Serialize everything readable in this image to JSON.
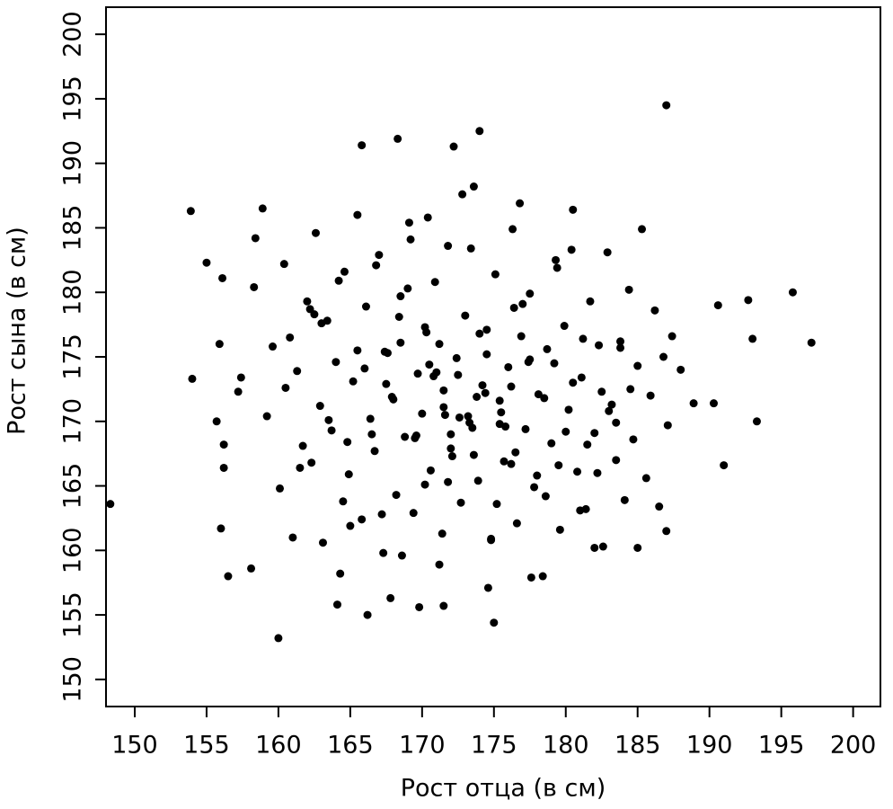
{
  "chart_data": {
    "type": "scatter",
    "x_label": "Рост отца (в см)",
    "y_label": "Рост сына (в см)",
    "xlim": [
      148,
      201.9
    ],
    "ylim": [
      147.9,
      202.1
    ],
    "xticks": [
      150,
      155,
      160,
      165,
      170,
      175,
      180,
      185,
      190,
      195,
      200
    ],
    "yticks": [
      150,
      155,
      160,
      165,
      170,
      175,
      180,
      185,
      190,
      195,
      200
    ],
    "color": "#000000",
    "series": [
      {
        "x": [
          148.3,
          153.9,
          154,
          155,
          155.7,
          155.9,
          156,
          156.1,
          156.2,
          156.2,
          156.5,
          157.2,
          157.4,
          158.1,
          158.3,
          158.4,
          158.9,
          160,
          165.8,
          168.3,
          172.2,
          174,
          187,
          192.7,
          193,
          193.3,
          195.8,
          197.1,
          191,
          190.3,
          190.6,
          175,
          164.1,
          166.2,
          169.8,
          171.5,
          187,
          185,
          182,
          159.2,
          159.6,
          160.1,
          160.4,
          160.8,
          161.0,
          161.3,
          161.7,
          162.0,
          162.3,
          162.6,
          162.9,
          163.1,
          163.4,
          163.7,
          164.0,
          164.3,
          164.6,
          164.9,
          165.2,
          165.5,
          165.8,
          166.1,
          166.4,
          166.7,
          167.0,
          167.3,
          167.6,
          167.9,
          168.2,
          168.5,
          168.8,
          169.1,
          169.4,
          169.7,
          170.0,
          170.3,
          170.6,
          170.9,
          171.2,
          171.5,
          171.8,
          172.1,
          172.4,
          172.7,
          173.0,
          173.3,
          173.6,
          173.9,
          174.2,
          174.5,
          174.8,
          175.1,
          175.4,
          175.7,
          176.0,
          176.3,
          176.6,
          176.9,
          177.2,
          177.5,
          177.8,
          178.1,
          178.4,
          178.7,
          179.0,
          179.3,
          179.6,
          179.9,
          180.2,
          180.5,
          180.8,
          181.1,
          181.4,
          181.7,
          182.0,
          182.3,
          182.6,
          182.9,
          183.2,
          183.5,
          183.8,
          184.1,
          184.4,
          184.7,
          185.0,
          185.3,
          185.6,
          185.9,
          186.2,
          186.5,
          186.8,
          187.1,
          187.4,
          188.0,
          188.9,
          160.5,
          161.5,
          162.5,
          163.5,
          164.5,
          165.5,
          166.5,
          167.5,
          168.5,
          169.5,
          170.5,
          171.5,
          172.5,
          173.5,
          174.5,
          175.5,
          176.5,
          177.5,
          178.5,
          179.5,
          180.5,
          181.5,
          182.5,
          183.5,
          184.5,
          163.0,
          164.8,
          166.0,
          167.2,
          168.0,
          169.0,
          170.2,
          171.0,
          172.0,
          173.2,
          174.0,
          175.2,
          176.2,
          177.0,
          178.0,
          179.2,
          180.0,
          181.2,
          182.2,
          183.0,
          165.0,
          166.8,
          168.6,
          170.4,
          171.8,
          173.4,
          174.8,
          176.4,
          177.6,
          179.4,
          181.0,
          162.2,
          164.2,
          167.8,
          169.2,
          171.4,
          172.8,
          174.6,
          176.8,
          178.6,
          180.4,
          183.8,
          167.4,
          169.6,
          171.6,
          173.8,
          175.8,
          177.4,
          170.8,
          172.6,
          174.4,
          171.2,
          173.6,
          170.2,
          175.4,
          168.4,
          176.2,
          172.0
        ],
        "values": [
          163.6,
          186.3,
          173.3,
          182.3,
          170,
          176,
          161.7,
          181.1,
          168.2,
          166.4,
          158,
          172.3,
          173.4,
          158.6,
          180.4,
          184.2,
          186.5,
          153.2,
          191.4,
          191.9,
          191.3,
          192.5,
          194.5,
          179.4,
          176.4,
          170,
          180,
          176.1,
          166.6,
          171.4,
          179,
          154.4,
          155.8,
          155,
          155.6,
          155.7,
          161.5,
          160.2,
          160.2,
          170.4,
          175.8,
          164.8,
          182.2,
          176.5,
          161.0,
          173.9,
          168.1,
          179.3,
          166.8,
          184.6,
          171.2,
          160.6,
          177.8,
          169.3,
          174.6,
          158.2,
          181.6,
          165.9,
          173.1,
          186.0,
          162.4,
          178.9,
          170.2,
          167.7,
          182.9,
          159.8,
          175.3,
          171.9,
          164.3,
          179.7,
          168.8,
          185.4,
          162.9,
          173.7,
          170.6,
          176.9,
          166.2,
          180.8,
          158.9,
          172.4,
          183.6,
          167.3,
          174.9,
          163.7,
          178.2,
          169.9,
          188.2,
          165.4,
          172.8,
          177.1,
          160.9,
          181.4,
          171.6,
          166.9,
          174.2,
          184.9,
          162.1,
          176.6,
          169.4,
          179.9,
          164.9,
          172.1,
          158.0,
          175.6,
          168.3,
          182.5,
          161.6,
          177.4,
          170.9,
          186.4,
          166.1,
          173.4,
          163.2,
          179.3,
          169.1,
          175.9,
          160.3,
          183.1,
          171.3,
          167.0,
          176.2,
          163.9,
          180.2,
          168.6,
          174.3,
          184.9,
          165.6,
          172.0,
          178.6,
          163.4,
          175.0,
          169.7,
          176.6,
          174.0,
          171.4,
          172.6,
          166.4,
          178.3,
          170.1,
          163.8,
          175.5,
          169.0,
          172.9,
          176.1,
          168.7,
          174.4,
          171.1,
          173.6,
          169.5,
          175.2,
          170.7,
          167.6,
          174.8,
          171.8,
          166.6,
          173.0,
          168.2,
          172.3,
          169.9,
          172.5,
          177.6,
          168.4,
          174.1,
          162.8,
          171.7,
          180.3,
          165.1,
          173.8,
          167.9,
          170.4,
          176.8,
          163.6,
          172.7,
          179.1,
          165.8,
          174.5,
          169.2,
          176.4,
          166.0,
          170.8,
          161.9,
          182.1,
          159.6,
          185.8,
          165.3,
          183.4,
          160.8,
          178.8,
          157.9,
          181.9,
          163.1,
          178.7,
          180.9,
          156.3,
          184.1,
          161.3,
          187.6,
          157.1,
          186.9,
          164.2,
          183.3,
          175.7,
          175.4,
          168.9,
          170.5,
          171.9,
          169.6,
          174.6,
          173.5,
          170.3,
          172.2,
          176.0,
          167.4,
          177.3,
          169.8,
          178.1,
          166.7,
          169.0
        ]
      }
    ],
    "grid": false
  }
}
